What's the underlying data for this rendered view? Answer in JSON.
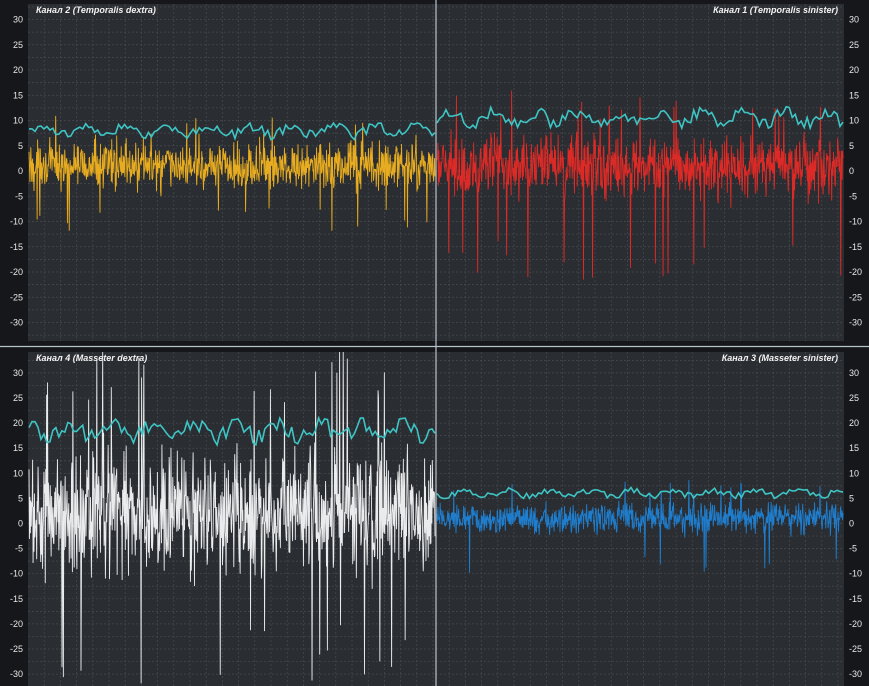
{
  "chart_data": {
    "type": "line",
    "ylim": [
      -34,
      34
    ],
    "yticks": [
      30,
      25,
      20,
      15,
      10,
      5,
      0,
      -5,
      -10,
      -15,
      -20,
      -25,
      -30
    ],
    "grid": true,
    "envelope_color": "#3fc4c4",
    "panels": [
      {
        "id": "ch2",
        "position": "top-left",
        "title": "Канал 2 (Temporalis dextra)",
        "signal_color": "#f2b320",
        "signal_center": 1,
        "signal_amplitude": 6,
        "signal_peak_min": -12,
        "signal_peak_max": 11,
        "envelope_level": 8,
        "envelope_range": [
          6,
          9.5
        ]
      },
      {
        "id": "ch1",
        "position": "top-right",
        "title": "Канал 1 (Temporalis sinister)",
        "signal_color": "#e82a26",
        "signal_center": 1,
        "signal_amplitude": 8,
        "signal_peak_min": -22,
        "signal_peak_max": 16,
        "envelope_level": 10.5,
        "envelope_range": [
          8.5,
          13
        ]
      },
      {
        "id": "ch4",
        "position": "bottom-left",
        "title": "Канал 4 (Masseter dextra)",
        "signal_color": "#f4f6f8",
        "signal_center": 2,
        "signal_amplitude": 16,
        "signal_peak_min": -33,
        "signal_peak_max": 35,
        "envelope_level": 18.5,
        "envelope_range": [
          15.5,
          21
        ]
      },
      {
        "id": "ch3",
        "position": "bottom-right",
        "title": "Канал 3 (Masseter sinister)",
        "signal_color": "#1f82d6",
        "signal_center": 1,
        "signal_amplitude": 4,
        "signal_peak_min": -10,
        "signal_peak_max": 9,
        "envelope_level": 6,
        "envelope_range": [
          5,
          7.5
        ]
      }
    ]
  }
}
